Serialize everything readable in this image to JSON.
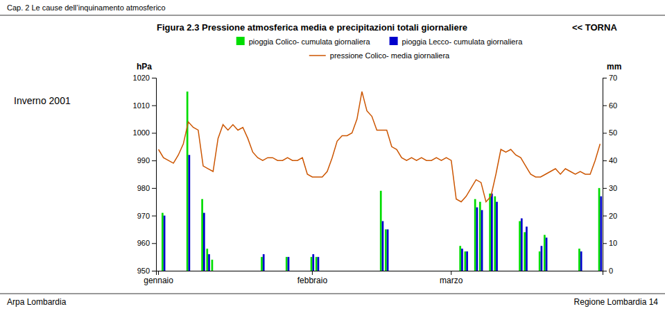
{
  "chart_data": {
    "type": "bar",
    "title": "Figura 2.3  Pressione atmosferica media e precipitazioni totali giornaliere",
    "subtitle": "Inverno 2001",
    "y_label": "hPa",
    "y2_label": "mm",
    "annotations": [
      "<< TORNA",
      "Cap. 2   Le cause dell’inquinamento atmosferico",
      "Arpa Lombardia",
      "Regione Lombardia  14"
    ],
    "categories": [
      "gennaio",
      null,
      null,
      null,
      null,
      null,
      null,
      null,
      null,
      null,
      null,
      null,
      null,
      null,
      null,
      null,
      null,
      null,
      null,
      null,
      null,
      null,
      null,
      null,
      null,
      null,
      null,
      null,
      null,
      null,
      null,
      "febbraio",
      null,
      null,
      null,
      null,
      null,
      null,
      null,
      null,
      null,
      null,
      null,
      null,
      null,
      null,
      null,
      null,
      null,
      null,
      null,
      null,
      null,
      null,
      null,
      null,
      null,
      null,
      null,
      "marzo",
      null,
      null,
      null,
      null,
      null,
      null,
      null,
      null,
      null,
      null,
      null,
      null,
      null,
      null,
      null,
      null,
      null,
      null,
      null,
      null,
      null,
      null,
      null,
      null,
      null,
      null,
      null,
      null,
      null,
      null
    ],
    "series": [
      {
        "name": "pioggia Colico- cumulata giornaliera",
        "type": "bar",
        "axis": "y2",
        "color": "#00DD00",
        "values": [
          0,
          21,
          0,
          0,
          0,
          0,
          65,
          0,
          0,
          26,
          8,
          4,
          0,
          0,
          0,
          0,
          0,
          0,
          0,
          0,
          0,
          5,
          0,
          0,
          0,
          0,
          5,
          0,
          0,
          0,
          0,
          5,
          5,
          0,
          0,
          0,
          0,
          0,
          0,
          0,
          0,
          0,
          0,
          0,
          0,
          29,
          15,
          0,
          0,
          0,
          0,
          0,
          0,
          0,
          0,
          0,
          0,
          0,
          0,
          0,
          0,
          9,
          7,
          0,
          26,
          25,
          0,
          28,
          27,
          0,
          0,
          0,
          0,
          18,
          14,
          0,
          0,
          7,
          13,
          0,
          0,
          0,
          0,
          0,
          0,
          8,
          0,
          0,
          0,
          30
        ]
      },
      {
        "name": "pioggia Lecco- cumulata giornaliera",
        "type": "bar",
        "axis": "y2",
        "color": "#0000CC",
        "values": [
          0,
          20,
          0,
          0,
          0,
          0,
          42,
          0,
          0,
          21,
          6,
          0,
          0,
          0,
          0,
          0,
          0,
          0,
          0,
          0,
          0,
          6,
          0,
          0,
          0,
          0,
          5,
          0,
          0,
          0,
          0,
          6,
          5,
          0,
          0,
          0,
          0,
          0,
          0,
          0,
          0,
          0,
          0,
          0,
          0,
          18,
          15,
          0,
          0,
          0,
          0,
          0,
          0,
          0,
          0,
          0,
          0,
          0,
          0,
          0,
          0,
          8,
          7,
          0,
          23,
          22,
          0,
          28,
          25,
          0,
          0,
          0,
          0,
          19,
          16,
          0,
          0,
          9,
          12,
          0,
          0,
          0,
          0,
          0,
          0,
          7,
          0,
          0,
          0,
          27
        ]
      },
      {
        "name": "pressione Colico-  media giornaliera",
        "type": "line",
        "axis": "y",
        "color": "#CC5500",
        "values": [
          994,
          991,
          990,
          989,
          992,
          996,
          1004,
          1002,
          1001,
          988,
          987,
          986,
          998,
          1003,
          1001,
          1003,
          1001,
          1002,
          998,
          993,
          991,
          990,
          991,
          991,
          990,
          990,
          991,
          990,
          990,
          991,
          985,
          984,
          984,
          984,
          986,
          991,
          997,
          999,
          999,
          1000,
          1005,
          1015,
          1008,
          1006,
          1001,
          1001,
          1001,
          995,
          994,
          991,
          990,
          991,
          990,
          991,
          990,
          990,
          991,
          990,
          991,
          990,
          976,
          975,
          977,
          980,
          983,
          982,
          975,
          977,
          985,
          994,
          993,
          994,
          992,
          991,
          988,
          985,
          984,
          984,
          985,
          986,
          987,
          985,
          987,
          986,
          985,
          986,
          985,
          985,
          990,
          996
        ]
      }
    ],
    "ylim": [
      950,
      1020
    ],
    "yticks": [
      950,
      960,
      970,
      980,
      990,
      1000,
      1010,
      1020
    ],
    "y2lim": [
      0,
      70
    ],
    "y2ticks": [
      0,
      10,
      20,
      30,
      40,
      50,
      60,
      70
    ],
    "legend": "top",
    "grid": false
  }
}
